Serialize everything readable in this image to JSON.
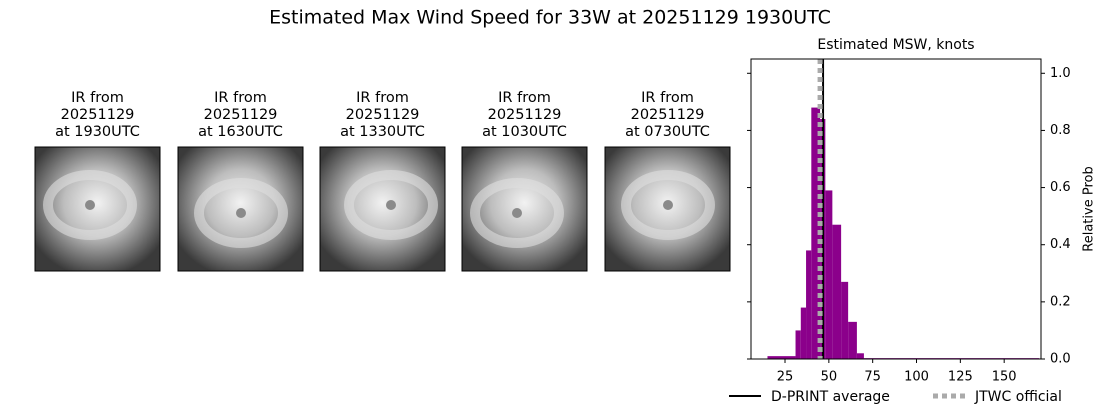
{
  "title": "Estimated Max Wind Speed for 33W at 20251129 1930UTC",
  "panels": [
    {
      "label": [
        "IR from",
        "20251129",
        "at 1930UTC"
      ]
    },
    {
      "label": [
        "IR from",
        "20251129",
        "at 1630UTC"
      ]
    },
    {
      "label": [
        "IR from",
        "20251129",
        "at 1330UTC"
      ]
    },
    {
      "label": [
        "IR from",
        "20251129",
        "at 1030UTC"
      ]
    },
    {
      "label": [
        "IR from",
        "20251129",
        "at 0730UTC"
      ]
    }
  ],
  "chart_data": {
    "type": "histogram",
    "title": "Estimated MSW, knots",
    "y_label": "Relative Prob",
    "bins": [
      15,
      31,
      34,
      37,
      40,
      45,
      48,
      52,
      57,
      61,
      66,
      70,
      170
    ],
    "values": [
      0.01,
      0.1,
      0.18,
      0.38,
      0.88,
      0.84,
      0.59,
      0.47,
      0.27,
      0.13,
      0.02,
      0.003
    ],
    "color": "#8b008b",
    "xlim": [
      5.6,
      171
    ],
    "xticks": [
      25,
      50,
      75,
      100,
      125,
      150
    ],
    "ylim": [
      0,
      1.05
    ],
    "yticks": [
      {
        "value": 0,
        "label": "0.0"
      },
      {
        "value": 0.2,
        "label": "0.2"
      },
      {
        "value": 0.4,
        "label": "0.4"
      },
      {
        "value": 0.6,
        "label": "0.6"
      },
      {
        "value": 0.8,
        "label": "0.8"
      },
      {
        "value": 1,
        "label": "1.0"
      }
    ],
    "series": [
      {
        "name": "D-PRINT average",
        "color": "#000000",
        "dashed": false,
        "value": 46.7
      },
      {
        "name": "JTWC official",
        "color": "#aaaaaa",
        "dashed": true,
        "value": 45
      }
    ]
  }
}
